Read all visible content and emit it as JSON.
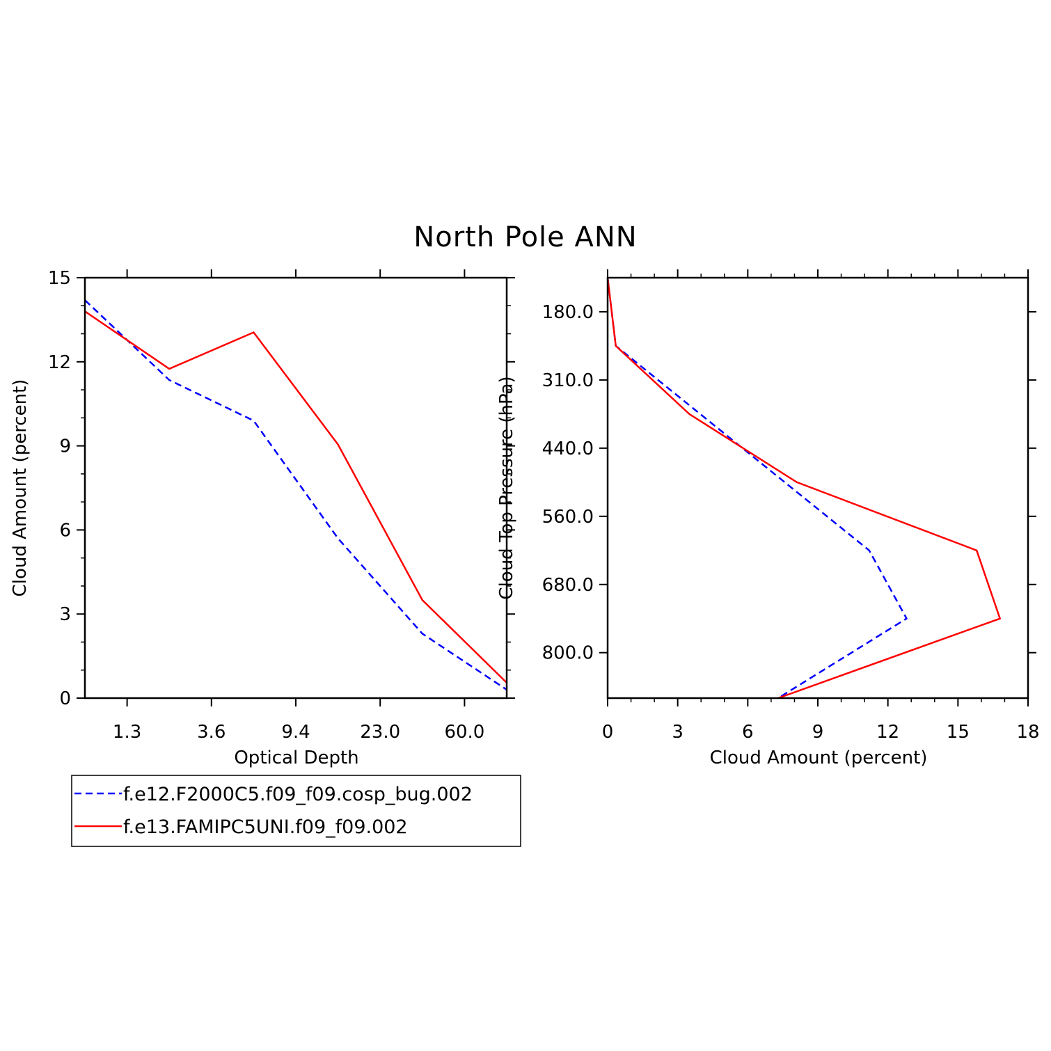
{
  "title": "North Pole ANN",
  "legend": {
    "entries": [
      {
        "label": "f.e12.F2000C5.f09_f09.cosp_bug.002",
        "color": "#0000ff",
        "style": "dashed"
      },
      {
        "label": "f.e13.FAMIPC5UNI.f09_f09.002",
        "color": "#ff0000",
        "style": "solid"
      }
    ]
  },
  "chart_data": [
    {
      "type": "line",
      "xlabel": "Optical Depth",
      "ylabel": "Cloud Amount (percent)",
      "x_tick_labels": [
        "1.3",
        "3.6",
        "9.4",
        "23.0",
        "60.0"
      ],
      "x_tick_positions": [
        1,
        2,
        3,
        4,
        5
      ],
      "xlim": [
        0.5,
        5.5
      ],
      "ylim": [
        0,
        15
      ],
      "y_ticks": [
        0,
        3,
        6,
        9,
        12,
        15
      ],
      "grid": false,
      "series": [
        {
          "name": "f.e12.F2000C5.f09_f09.cosp_bug.002",
          "color": "#0000ff",
          "style": "dashed",
          "x": [
            0.5,
            1.5,
            2.5,
            3.5,
            4.5,
            5.5
          ],
          "y": [
            14.2,
            11.35,
            9.9,
            5.7,
            2.3,
            0.3
          ]
        },
        {
          "name": "f.e13.FAMIPC5UNI.f09_f09.002",
          "color": "#ff0000",
          "style": "solid",
          "x": [
            0.5,
            1.5,
            2.5,
            3.5,
            4.5,
            5.5
          ],
          "y": [
            13.8,
            11.75,
            13.05,
            9.05,
            3.5,
            0.55
          ]
        }
      ]
    },
    {
      "type": "line",
      "xlabel": "Cloud Amount (percent)",
      "ylabel": "Cloud Top Pressure (hPa)",
      "xlim": [
        0,
        18
      ],
      "x_ticks": [
        0,
        3,
        6,
        9,
        12,
        15,
        18
      ],
      "ylim": [
        120,
        860
      ],
      "y_inverted": true,
      "y_tick_labels": [
        "180.0",
        "310.0",
        "440.0",
        "560.0",
        "680.0",
        "800.0"
      ],
      "y_tick_values": [
        180,
        300,
        420,
        540,
        660,
        780
      ],
      "grid": false,
      "series": [
        {
          "name": "f.e12.F2000C5.f09_f09.cosp_bug.002",
          "color": "#0000ff",
          "style": "dashed",
          "x": [
            0.0,
            0.35,
            11.2,
            12.8,
            7.3
          ],
          "y": [
            120,
            240,
            600,
            720,
            860
          ]
        },
        {
          "name": "f.e13.FAMIPC5UNI.f09_f09.002",
          "color": "#ff0000",
          "style": "solid",
          "x": [
            0.0,
            0.35,
            3.5,
            8.1,
            15.8,
            16.8,
            7.3
          ],
          "y": [
            120,
            240,
            360,
            480,
            600,
            720,
            860
          ]
        }
      ]
    }
  ]
}
